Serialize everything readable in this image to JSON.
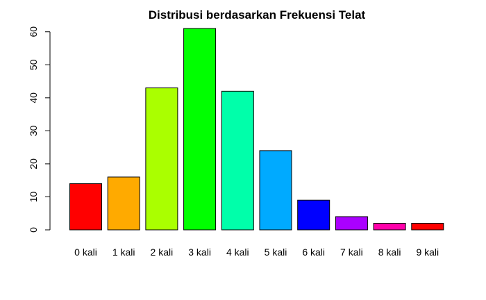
{
  "chart_data": {
    "type": "bar",
    "title": "Distribusi berdasarkan Frekuensi Telat",
    "xlabel": "",
    "ylabel": "",
    "categories": [
      "0 kali",
      "1 kali",
      "2 kali",
      "3 kali",
      "4 kali",
      "5 kali",
      "6 kali",
      "7 kali",
      "8 kali",
      "9 kali"
    ],
    "values": [
      14,
      16,
      43,
      61,
      42,
      24,
      9,
      4,
      2,
      2
    ],
    "colors": [
      "#FF0000",
      "#FFAA00",
      "#AAFF00",
      "#00FF00",
      "#00FFAA",
      "#00AAFF",
      "#0000FF",
      "#AA00FF",
      "#FF00AA",
      "#FF0000"
    ],
    "yticks": [
      0,
      10,
      20,
      30,
      40,
      50,
      60
    ],
    "ylim": [
      0,
      61
    ],
    "grid": false,
    "legend": "none"
  }
}
